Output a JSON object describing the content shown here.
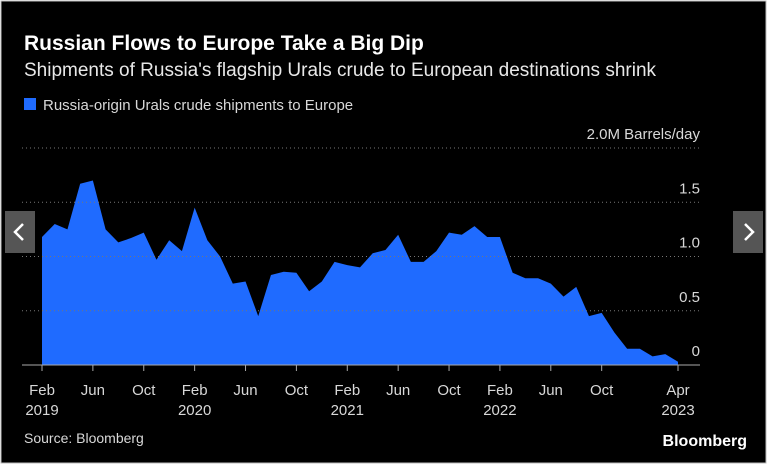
{
  "chart_data": {
    "type": "area",
    "title": "Russian Flows to Europe Take a Big Dip",
    "subtitle": "Shipments of Russia's flagship Urals crude to European destinations shrink",
    "source": "Source: Bloomberg",
    "brand": "Bloomberg",
    "x": [
      "2019-02",
      "2019-03",
      "2019-04",
      "2019-05",
      "2019-06",
      "2019-07",
      "2019-08",
      "2019-09",
      "2019-10",
      "2019-11",
      "2019-12",
      "2020-01",
      "2020-02",
      "2020-03",
      "2020-04",
      "2020-05",
      "2020-06",
      "2020-07",
      "2020-08",
      "2020-09",
      "2020-10",
      "2020-11",
      "2020-12",
      "2021-01",
      "2021-02",
      "2021-03",
      "2021-04",
      "2021-05",
      "2021-06",
      "2021-07",
      "2021-08",
      "2021-09",
      "2021-10",
      "2021-11",
      "2021-12",
      "2022-01",
      "2022-02",
      "2022-03",
      "2022-04",
      "2022-05",
      "2022-06",
      "2022-07",
      "2022-08",
      "2022-09",
      "2022-10",
      "2022-11",
      "2022-12",
      "2023-01",
      "2023-02",
      "2023-03",
      "2023-04"
    ],
    "series": [
      {
        "name": "Russia-origin Urals crude shipments to Europe",
        "color": "#1f6bff",
        "values": [
          1.18,
          1.3,
          1.25,
          1.67,
          1.7,
          1.25,
          1.13,
          1.17,
          1.22,
          0.97,
          1.15,
          1.05,
          1.45,
          1.15,
          1.0,
          0.75,
          0.77,
          0.45,
          0.83,
          0.86,
          0.85,
          0.68,
          0.77,
          0.95,
          0.92,
          0.9,
          1.03,
          1.06,
          1.2,
          0.95,
          0.95,
          1.05,
          1.22,
          1.2,
          1.28,
          1.18,
          1.18,
          0.85,
          0.8,
          0.8,
          0.75,
          0.63,
          0.72,
          0.45,
          0.48,
          0.3,
          0.15,
          0.15,
          0.08,
          0.1,
          0.03
        ]
      }
    ],
    "ylim": [
      0,
      2
    ],
    "yticks": [
      0,
      0.5,
      {
        "value": 1,
        "label": "1.0"
      },
      1.5,
      {
        "value": 2,
        "label": "2.0M Barrels/day"
      }
    ],
    "xticks": [
      {
        "value": "2019-02",
        "label": "Feb",
        "sublabel": "2019"
      },
      {
        "value": "2019-06",
        "label": "Jun"
      },
      {
        "value": "2019-10",
        "label": "Oct"
      },
      {
        "value": "2020-02",
        "label": "Feb",
        "sublabel": "2020"
      },
      {
        "value": "2020-06",
        "label": "Jun"
      },
      {
        "value": "2020-10",
        "label": "Oct"
      },
      {
        "value": "2021-02",
        "label": "Feb",
        "sublabel": "2021"
      },
      {
        "value": "2021-06",
        "label": "Jun"
      },
      {
        "value": "2021-10",
        "label": "Oct"
      },
      {
        "value": "2022-02",
        "label": "Feb",
        "sublabel": "2022"
      },
      {
        "value": "2022-06",
        "label": "Jun"
      },
      {
        "value": "2022-10",
        "label": "Oct"
      },
      {
        "value": "2023-04",
        "label": "Apr",
        "sublabel": "2023"
      }
    ],
    "grid": true
  }
}
